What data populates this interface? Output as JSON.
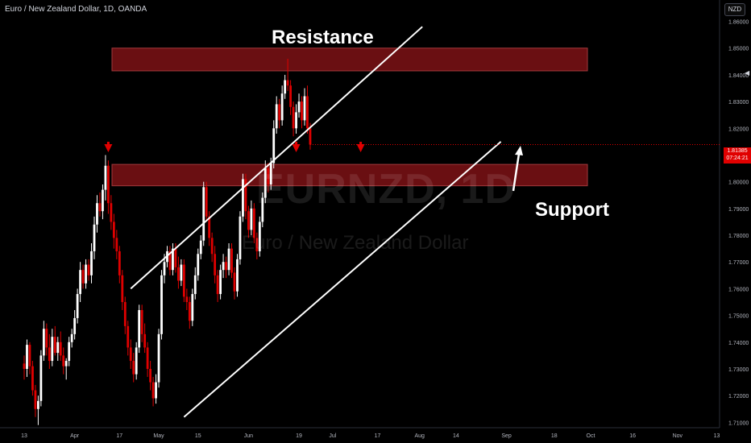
{
  "header": {
    "symbol_line": "Euro / New Zealand Dollar, 1D, OANDA"
  },
  "currency_badge": "NZD",
  "watermark": {
    "symbol": "EURNZD, 1D",
    "name": "Euro / New Zealand Dollar"
  },
  "annotations": {
    "resistance_label": "Resistance",
    "support_label": "Support",
    "resistance_zone": [
      1.8415,
      1.85
    ],
    "support_zone": [
      1.7985,
      1.8065
    ]
  },
  "current_price": {
    "value": "1.81385",
    "countdown": "07:24:21"
  },
  "colors": {
    "up": "#ffffff",
    "down": "#e00000",
    "zone_fill": "#6a0f12",
    "zone_edge": "#a23a3c",
    "price_tag": "#e00000"
  },
  "chart_data": {
    "type": "candlestick",
    "ylim": [
      1.708,
      1.868
    ],
    "yticks": [
      "1.71000",
      "1.72000",
      "1.73000",
      "1.74000",
      "1.75000",
      "1.76000",
      "1.77000",
      "1.78000",
      "1.79000",
      "1.80000",
      "1.81000",
      "1.82000",
      "1.83000",
      "1.84000",
      "1.85000",
      "1.86000"
    ],
    "xticks": [
      {
        "label": "13",
        "d": 0
      },
      {
        "label": "Apr",
        "d": 18
      },
      {
        "label": "17",
        "d": 34
      },
      {
        "label": "May",
        "d": 48
      },
      {
        "label": "15",
        "d": 62
      },
      {
        "label": "Jun",
        "d": 80
      },
      {
        "label": "19",
        "d": 98
      },
      {
        "label": "Jul",
        "d": 110
      },
      {
        "label": "17",
        "d": 126
      },
      {
        "label": "Aug",
        "d": 141
      },
      {
        "label": "14",
        "d": 154
      },
      {
        "label": "Sep",
        "d": 172
      },
      {
        "label": "18",
        "d": 189
      },
      {
        "label": "Oct",
        "d": 202
      },
      {
        "label": "16",
        "d": 217
      },
      {
        "label": "Nov",
        "d": 233
      },
      {
        "label": "13",
        "d": 247
      }
    ],
    "candles": [
      [
        1.732,
        1.735,
        1.726,
        1.73
      ],
      [
        1.73,
        1.741,
        1.727,
        1.739
      ],
      [
        1.739,
        1.74,
        1.728,
        1.731
      ],
      [
        1.731,
        1.733,
        1.72,
        1.722
      ],
      [
        1.722,
        1.724,
        1.712,
        1.715
      ],
      [
        1.715,
        1.72,
        1.709,
        1.718
      ],
      [
        1.718,
        1.737,
        1.716,
        1.735
      ],
      [
        1.735,
        1.748,
        1.733,
        1.745
      ],
      [
        1.745,
        1.747,
        1.735,
        1.738
      ],
      [
        1.738,
        1.743,
        1.73,
        1.733
      ],
      [
        1.733,
        1.745,
        1.731,
        1.742
      ],
      [
        1.742,
        1.746,
        1.735,
        1.736
      ],
      [
        1.736,
        1.742,
        1.733,
        1.74
      ],
      [
        1.74,
        1.744,
        1.733,
        1.735
      ],
      [
        1.735,
        1.738,
        1.728,
        1.731
      ],
      [
        1.731,
        1.734,
        1.726,
        1.733
      ],
      [
        1.733,
        1.742,
        1.731,
        1.74
      ],
      [
        1.74,
        1.745,
        1.738,
        1.743
      ],
      [
        1.743,
        1.752,
        1.741,
        1.749
      ],
      [
        1.749,
        1.76,
        1.747,
        1.758
      ],
      [
        1.758,
        1.77,
        1.755,
        1.767
      ],
      [
        1.767,
        1.769,
        1.76,
        1.762
      ],
      [
        1.762,
        1.771,
        1.76,
        1.769
      ],
      [
        1.769,
        1.771,
        1.763,
        1.765
      ],
      [
        1.765,
        1.777,
        1.762,
        1.774
      ],
      [
        1.774,
        1.787,
        1.771,
        1.784
      ],
      [
        1.784,
        1.795,
        1.781,
        1.792
      ],
      [
        1.792,
        1.796,
        1.787,
        1.789
      ],
      [
        1.789,
        1.799,
        1.786,
        1.797
      ],
      [
        1.797,
        1.81,
        1.793,
        1.806
      ],
      [
        1.806,
        1.808,
        1.788,
        1.792
      ],
      [
        1.792,
        1.795,
        1.782,
        1.785
      ],
      [
        1.785,
        1.788,
        1.775,
        1.779
      ],
      [
        1.779,
        1.782,
        1.771,
        1.774
      ],
      [
        1.774,
        1.776,
        1.762,
        1.765
      ],
      [
        1.765,
        1.767,
        1.752,
        1.755
      ],
      [
        1.755,
        1.757,
        1.743,
        1.746
      ],
      [
        1.746,
        1.748,
        1.735,
        1.738
      ],
      [
        1.738,
        1.741,
        1.73,
        1.733
      ],
      [
        1.733,
        1.736,
        1.725,
        1.728
      ],
      [
        1.728,
        1.74,
        1.726,
        1.738
      ],
      [
        1.738,
        1.754,
        1.736,
        1.752
      ],
      [
        1.752,
        1.754,
        1.74,
        1.743
      ],
      [
        1.743,
        1.747,
        1.736,
        1.738
      ],
      [
        1.738,
        1.74,
        1.727,
        1.73
      ],
      [
        1.73,
        1.733,
        1.722,
        1.725
      ],
      [
        1.725,
        1.727,
        1.716,
        1.719
      ],
      [
        1.719,
        1.728,
        1.717,
        1.725
      ],
      [
        1.725,
        1.745,
        1.723,
        1.743
      ],
      [
        1.743,
        1.767,
        1.741,
        1.765
      ],
      [
        1.765,
        1.773,
        1.762,
        1.77
      ],
      [
        1.77,
        1.776,
        1.768,
        1.774
      ],
      [
        1.774,
        1.776,
        1.765,
        1.767
      ],
      [
        1.767,
        1.777,
        1.765,
        1.775
      ],
      [
        1.775,
        1.777,
        1.766,
        1.768
      ],
      [
        1.768,
        1.772,
        1.76,
        1.763
      ],
      [
        1.763,
        1.771,
        1.761,
        1.769
      ],
      [
        1.769,
        1.771,
        1.755,
        1.757
      ],
      [
        1.757,
        1.76,
        1.752,
        1.755
      ],
      [
        1.755,
        1.757,
        1.745,
        1.748
      ],
      [
        1.748,
        1.76,
        1.746,
        1.758
      ],
      [
        1.758,
        1.768,
        1.756,
        1.765
      ],
      [
        1.765,
        1.775,
        1.763,
        1.773
      ],
      [
        1.773,
        1.78,
        1.771,
        1.778
      ],
      [
        1.778,
        1.8,
        1.776,
        1.798
      ],
      [
        1.798,
        1.8,
        1.785,
        1.787
      ],
      [
        1.787,
        1.789,
        1.776,
        1.779
      ],
      [
        1.779,
        1.781,
        1.77,
        1.773
      ],
      [
        1.773,
        1.776,
        1.762,
        1.765
      ],
      [
        1.765,
        1.767,
        1.755,
        1.758
      ],
      [
        1.758,
        1.769,
        1.756,
        1.767
      ],
      [
        1.767,
        1.773,
        1.764,
        1.77
      ],
      [
        1.77,
        1.772,
        1.764,
        1.767
      ],
      [
        1.767,
        1.777,
        1.765,
        1.775
      ],
      [
        1.775,
        1.777,
        1.764,
        1.766
      ],
      [
        1.766,
        1.768,
        1.756,
        1.759
      ],
      [
        1.759,
        1.773,
        1.757,
        1.771
      ],
      [
        1.771,
        1.789,
        1.769,
        1.787
      ],
      [
        1.787,
        1.803,
        1.785,
        1.801
      ],
      [
        1.801,
        1.803,
        1.786,
        1.789
      ],
      [
        1.789,
        1.791,
        1.779,
        1.782
      ],
      [
        1.782,
        1.793,
        1.78,
        1.79
      ],
      [
        1.79,
        1.792,
        1.777,
        1.779
      ],
      [
        1.779,
        1.781,
        1.771,
        1.774
      ],
      [
        1.774,
        1.787,
        1.772,
        1.785
      ],
      [
        1.785,
        1.796,
        1.783,
        1.794
      ],
      [
        1.794,
        1.808,
        1.792,
        1.805
      ],
      [
        1.805,
        1.807,
        1.796,
        1.799
      ],
      [
        1.799,
        1.809,
        1.797,
        1.807
      ],
      [
        1.807,
        1.823,
        1.805,
        1.82
      ],
      [
        1.82,
        1.832,
        1.818,
        1.829
      ],
      [
        1.829,
        1.831,
        1.82,
        1.823
      ],
      [
        1.823,
        1.836,
        1.821,
        1.833
      ],
      [
        1.833,
        1.84,
        1.831,
        1.838
      ],
      [
        1.838,
        1.846,
        1.834,
        1.836
      ],
      [
        1.836,
        1.838,
        1.825,
        1.828
      ],
      [
        1.828,
        1.83,
        1.817,
        1.82
      ],
      [
        1.82,
        1.829,
        1.818,
        1.826
      ],
      [
        1.826,
        1.833,
        1.824,
        1.83
      ],
      [
        1.83,
        1.832,
        1.82,
        1.823
      ],
      [
        1.823,
        1.835,
        1.821,
        1.832
      ],
      [
        1.832,
        1.836,
        1.818,
        1.82
      ],
      [
        1.82,
        1.822,
        1.812,
        1.8139
      ]
    ],
    "resistance_zone": [
      1.8415,
      1.85
    ],
    "support_zone": [
      1.7985,
      1.8065
    ],
    "channel_upper": [
      [
        38,
        1.76
      ],
      [
        142,
        1.858
      ]
    ],
    "channel_lower": [
      [
        57,
        1.712
      ],
      [
        170,
        1.815
      ]
    ],
    "markers": [
      {
        "d": 30
      },
      {
        "d": 97
      },
      {
        "d": 120
      }
    ]
  }
}
